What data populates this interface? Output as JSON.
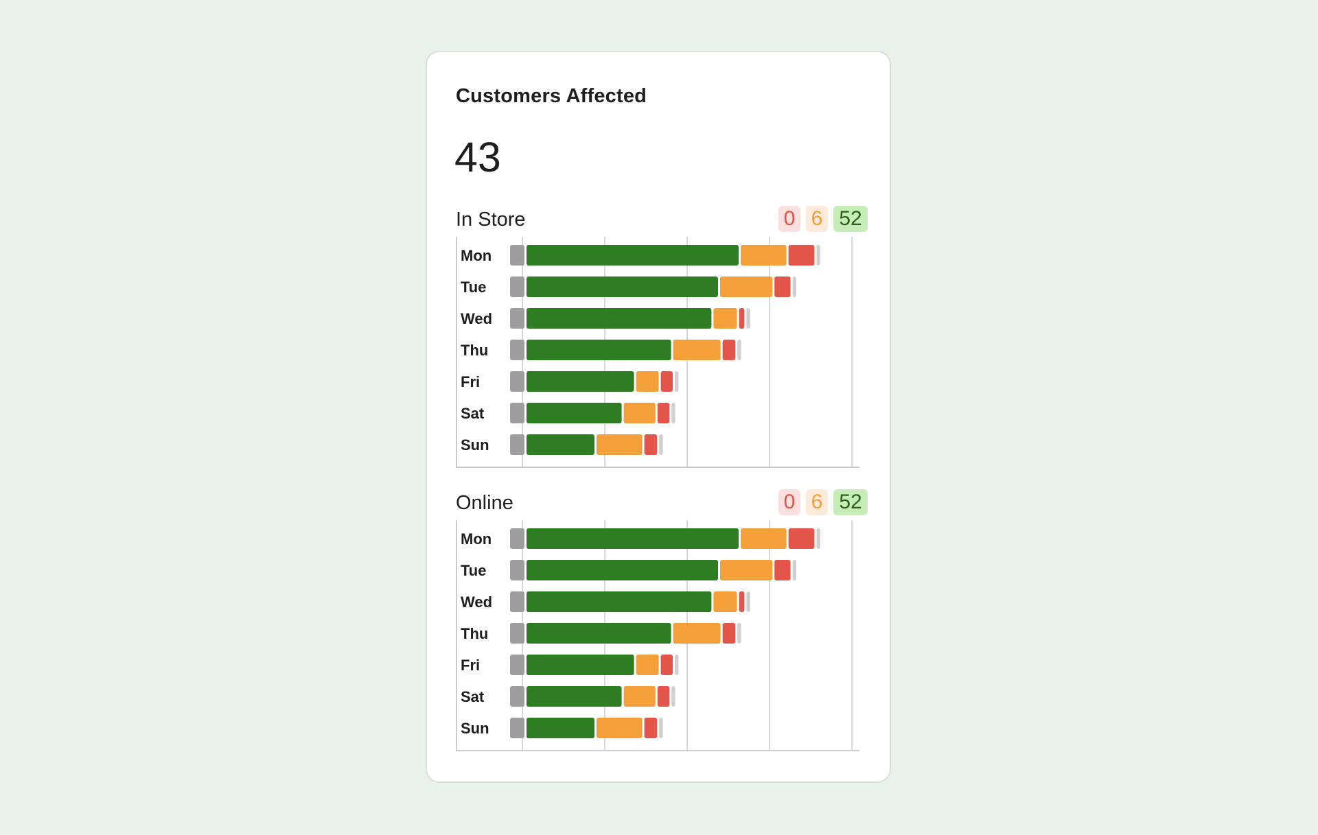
{
  "card": {
    "title": "Customers Affected",
    "total": "43"
  },
  "colors": {
    "good": "#2e7d22",
    "warning": "#f4a03a",
    "critical": "#e3554a",
    "unknown": "#9e9e9e",
    "remainder": "#cfcfcf",
    "grid": "#d8d8d8",
    "axis": "#cccccc"
  },
  "sections": [
    {
      "title": "In Store",
      "badges": {
        "red": "0",
        "orange": "6",
        "green": "52"
      }
    },
    {
      "title": "Online",
      "badges": {
        "red": "0",
        "orange": "6",
        "green": "52"
      }
    }
  ],
  "chart_data": [
    {
      "type": "bar",
      "orientation": "horizontal-stacked",
      "title": "In Store",
      "categories": [
        "Mon",
        "Tue",
        "Wed",
        "Thu",
        "Fri",
        "Sat",
        "Sun"
      ],
      "series": [
        {
          "key": "unknown",
          "values": [
            2,
            2,
            2,
            2,
            2,
            2,
            2
          ]
        },
        {
          "key": "good",
          "values": [
            26,
            23.5,
            22.7,
            17.8,
            13.3,
            11.8,
            8.5
          ]
        },
        {
          "key": "warning",
          "values": [
            5.8,
            6.6,
            3.1,
            6,
            3,
            4.1,
            5.8
          ]
        },
        {
          "key": "critical",
          "values": [
            3.4,
            2.2,
            0.9,
            1.8,
            1.7,
            1.7,
            1.8
          ]
        },
        {
          "key": "remainder",
          "values": [
            0.7,
            0.7,
            0.7,
            0.7,
            0.7,
            0.7,
            0.7
          ]
        }
      ],
      "xlim": [
        0,
        40
      ],
      "grid": true
    },
    {
      "type": "bar",
      "orientation": "horizontal-stacked",
      "title": "Online",
      "categories": [
        "Mon",
        "Tue",
        "Wed",
        "Thu",
        "Fri",
        "Sat",
        "Sun"
      ],
      "series": [
        {
          "key": "unknown",
          "values": [
            2,
            2,
            2,
            2,
            2,
            2,
            2
          ]
        },
        {
          "key": "good",
          "values": [
            26,
            23.5,
            22.7,
            17.8,
            13.3,
            11.8,
            8.5
          ]
        },
        {
          "key": "warning",
          "values": [
            5.8,
            6.6,
            3.1,
            6,
            3,
            4.1,
            5.8
          ]
        },
        {
          "key": "critical",
          "values": [
            3.4,
            2.2,
            0.9,
            1.8,
            1.7,
            1.7,
            1.8
          ]
        },
        {
          "key": "remainder",
          "values": [
            0.7,
            0.7,
            0.7,
            0.7,
            0.7,
            0.7,
            0.7
          ]
        }
      ],
      "xlim": [
        0,
        40
      ],
      "grid": true
    }
  ]
}
